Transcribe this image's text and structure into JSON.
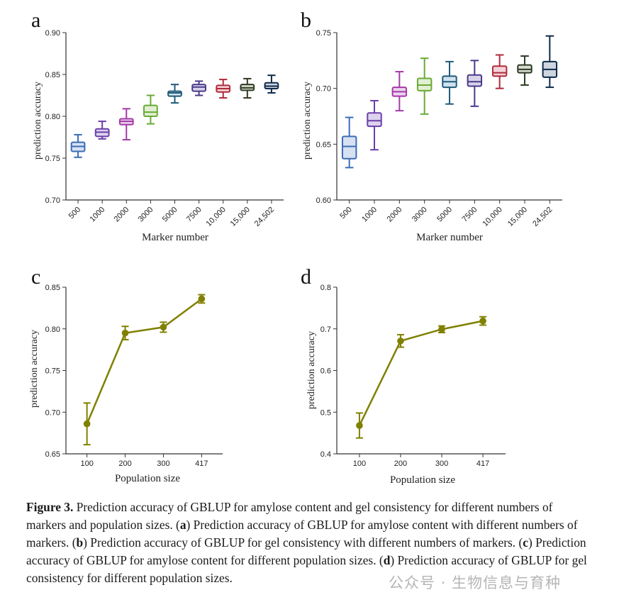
{
  "chart_data": [
    {
      "id": "a",
      "type": "box",
      "panel_label": "a",
      "xlabel": "Marker number",
      "ylabel": "prediction accuracy",
      "ylim": [
        0.7,
        0.9
      ],
      "yticks": [
        "0.70",
        "0.75",
        "0.80",
        "0.85",
        "0.90"
      ],
      "categories": [
        "500",
        "1000",
        "2000",
        "3000",
        "5000",
        "7500",
        "10,000",
        "15,000",
        "24,502"
      ],
      "colors": [
        "#3b6db5",
        "#6a3fa8",
        "#a23aa8",
        "#6aaa35",
        "#1f5a7a",
        "#4b3a8a",
        "#b02a3a",
        "#2f3b24",
        "#0f2a4a"
      ],
      "fills": [
        "#d7e1f2",
        "#ddd3ee",
        "#eed3ee",
        "#e1efd3",
        "#d1e2ee",
        "#d9d3ea",
        "#f2d3d8",
        "#d7dbd1",
        "#cfd6e0"
      ],
      "boxes": [
        {
          "min": 0.751,
          "q1": 0.758,
          "median": 0.764,
          "q3": 0.769,
          "max": 0.778
        },
        {
          "min": 0.773,
          "q1": 0.776,
          "median": 0.781,
          "q3": 0.785,
          "max": 0.794
        },
        {
          "min": 0.772,
          "q1": 0.79,
          "median": 0.794,
          "q3": 0.797,
          "max": 0.809
        },
        {
          "min": 0.791,
          "q1": 0.8,
          "median": 0.805,
          "q3": 0.813,
          "max": 0.825
        },
        {
          "min": 0.816,
          "q1": 0.824,
          "median": 0.828,
          "q3": 0.83,
          "max": 0.838
        },
        {
          "min": 0.825,
          "q1": 0.83,
          "median": 0.835,
          "q3": 0.838,
          "max": 0.842
        },
        {
          "min": 0.822,
          "q1": 0.829,
          "median": 0.833,
          "q3": 0.837,
          "max": 0.844
        },
        {
          "min": 0.822,
          "q1": 0.831,
          "median": 0.834,
          "q3": 0.838,
          "max": 0.845
        },
        {
          "min": 0.828,
          "q1": 0.833,
          "median": 0.836,
          "q3": 0.84,
          "max": 0.849
        }
      ]
    },
    {
      "id": "b",
      "type": "box",
      "panel_label": "b",
      "xlabel": "Marker number",
      "ylabel": "prediction accuracy",
      "ylim": [
        0.6,
        0.75
      ],
      "yticks": [
        "0.60",
        "0.65",
        "0.70",
        "0.75"
      ],
      "categories": [
        "500",
        "1000",
        "2000",
        "3000",
        "5000",
        "7500",
        "10,000",
        "15,000",
        "24,502"
      ],
      "colors": [
        "#3b6db5",
        "#6a3fa8",
        "#a23aa8",
        "#6aaa35",
        "#1f5a7a",
        "#4b3a8a",
        "#b02a3a",
        "#2f3b24",
        "#0f2a4a"
      ],
      "fills": [
        "#d7e1f2",
        "#ddd3ee",
        "#eed3ee",
        "#e1efd3",
        "#d1e2ee",
        "#d9d3ea",
        "#f2d3d8",
        "#d7dbd1",
        "#cfd6e0"
      ],
      "boxes": [
        {
          "min": 0.629,
          "q1": 0.637,
          "median": 0.648,
          "q3": 0.657,
          "max": 0.674
        },
        {
          "min": 0.645,
          "q1": 0.666,
          "median": 0.671,
          "q3": 0.678,
          "max": 0.689
        },
        {
          "min": 0.68,
          "q1": 0.693,
          "median": 0.697,
          "q3": 0.701,
          "max": 0.715
        },
        {
          "min": 0.677,
          "q1": 0.698,
          "median": 0.703,
          "q3": 0.709,
          "max": 0.727
        },
        {
          "min": 0.686,
          "q1": 0.701,
          "median": 0.706,
          "q3": 0.711,
          "max": 0.724
        },
        {
          "min": 0.684,
          "q1": 0.702,
          "median": 0.706,
          "q3": 0.712,
          "max": 0.725
        },
        {
          "min": 0.7,
          "q1": 0.711,
          "median": 0.714,
          "q3": 0.72,
          "max": 0.73
        },
        {
          "min": 0.703,
          "q1": 0.714,
          "median": 0.717,
          "q3": 0.721,
          "max": 0.729
        },
        {
          "min": 0.701,
          "q1": 0.71,
          "median": 0.717,
          "q3": 0.724,
          "max": 0.747
        }
      ]
    },
    {
      "id": "c",
      "type": "line",
      "panel_label": "c",
      "xlabel": "Population size",
      "ylabel": "prediction accuracy",
      "ylim": [
        0.65,
        0.85
      ],
      "yticks": [
        "0.65",
        "0.70",
        "0.75",
        "0.80",
        "0.85"
      ],
      "categories": [
        "100",
        "200",
        "300",
        "417"
      ],
      "color": "#808000",
      "values": [
        0.686,
        0.795,
        0.802,
        0.836
      ],
      "errors": [
        0.025,
        0.008,
        0.006,
        0.005
      ]
    },
    {
      "id": "d",
      "type": "line",
      "panel_label": "d",
      "xlabel": "Population size",
      "ylabel": "prediction accuracy",
      "ylim": [
        0.4,
        0.8
      ],
      "yticks": [
        "0.4",
        "0.5",
        "0.6",
        "0.7",
        "0.8"
      ],
      "categories": [
        "100",
        "200",
        "300",
        "417"
      ],
      "color": "#808000",
      "values": [
        0.468,
        0.671,
        0.699,
        0.719
      ],
      "errors": [
        0.03,
        0.015,
        0.008,
        0.01
      ]
    }
  ],
  "caption": {
    "label": "Figure 3.",
    "part1": " Prediction accuracy of GBLUP for amylose content and gel consistency for different numbers of markers and population sizes. (",
    "a": "a",
    "part2": ") Prediction accuracy of GBLUP for amylose content with different numbers of markers. (",
    "b": "b",
    "part3": ") Prediction accuracy of GBLUP for gel consistency with different numbers of markers. (",
    "c": "c",
    "part4": ") Prediction accuracy of GBLUP for amylose content for different population sizes. (",
    "d": "d",
    "part5": ") Prediction accuracy of GBLUP for gel consistency for different population sizes."
  },
  "watermark": "公众号 · 生物信息与育种"
}
